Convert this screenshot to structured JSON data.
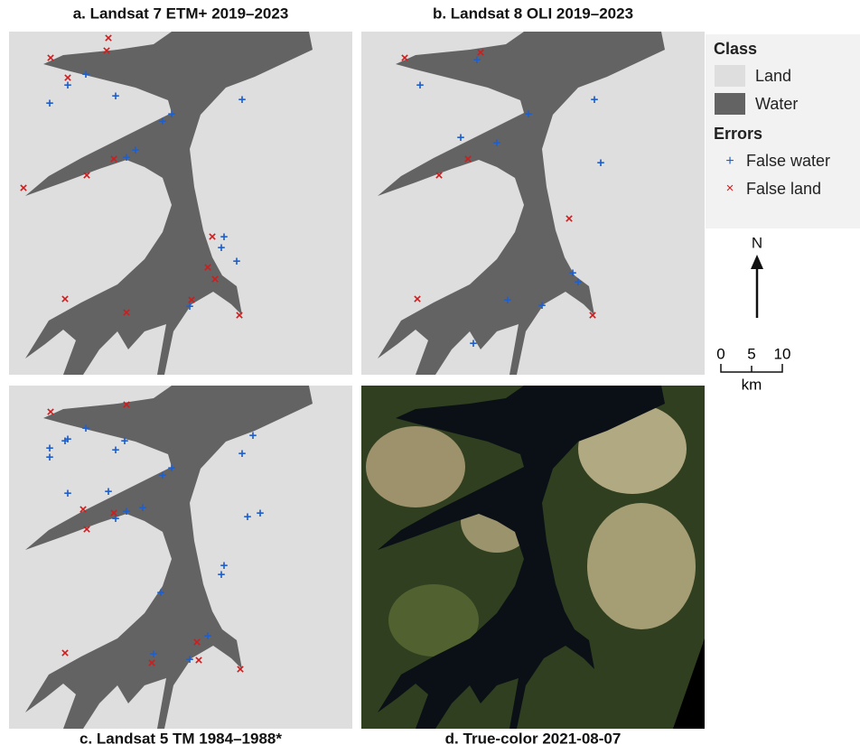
{
  "panels": [
    {
      "title": "a. Landsat 7 ETM+ 2019–2023"
    },
    {
      "title": "b. Landsat 8 OLI 2019–2023"
    },
    {
      "title": "c. Landsat 5 TM 1984–1988*"
    },
    {
      "title": "d. True-color 2021-08-07"
    }
  ],
  "legend": {
    "class_title": "Class",
    "classes": [
      "Land",
      "Water"
    ],
    "errors_title": "Errors",
    "errors": [
      "False water",
      "False land"
    ]
  },
  "north": "N",
  "scale": {
    "labels": [
      0,
      5,
      10
    ],
    "unit": "km"
  }
}
